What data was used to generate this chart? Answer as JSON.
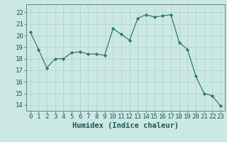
{
  "x": [
    0,
    1,
    2,
    3,
    4,
    5,
    6,
    7,
    8,
    9,
    10,
    11,
    12,
    13,
    14,
    15,
    16,
    17,
    18,
    19,
    20,
    21,
    22,
    23
  ],
  "y": [
    20.3,
    18.8,
    17.2,
    18.0,
    18.0,
    18.5,
    18.6,
    18.4,
    18.4,
    18.3,
    20.6,
    20.1,
    19.6,
    21.5,
    21.8,
    21.6,
    21.7,
    21.8,
    19.4,
    18.8,
    16.5,
    15.0,
    14.8,
    13.9
  ],
  "line_color": "#2e7d6e",
  "marker_color": "#2e7d6e",
  "bg_color": "#cce8e4",
  "grid_color": "#aad4cc",
  "xlabel": "Humidex (Indice chaleur)",
  "ylim": [
    13.5,
    22.7
  ],
  "xlim": [
    -0.5,
    23.5
  ],
  "yticks": [
    14,
    15,
    16,
    17,
    18,
    19,
    20,
    21,
    22
  ],
  "xticks": [
    0,
    1,
    2,
    3,
    4,
    5,
    6,
    7,
    8,
    9,
    10,
    11,
    12,
    13,
    14,
    15,
    16,
    17,
    18,
    19,
    20,
    21,
    22,
    23
  ],
  "tick_label_fontsize": 6.5,
  "xlabel_fontsize": 7.5
}
